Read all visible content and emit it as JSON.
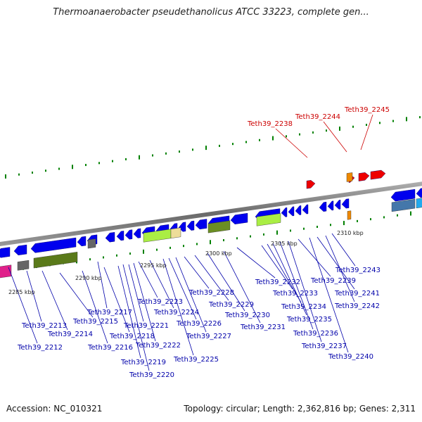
{
  "title": "Thermoanaerobacter pseudethanolicus ATCC 33223, complete gen...",
  "accession_label": "Accession: NC_010321",
  "topology_label": "Topology: circular; Length: 2,362,816 bp; Genes: 2,311",
  "colors": {
    "backbone": "#808080",
    "gene_forward": "#0000ee",
    "gene_reverse": "#ee0000",
    "label_blue": "#0000aa",
    "label_red": "#cc0000",
    "ticks": "#008000"
  },
  "kbp_ticks": [
    "2285 kbp",
    "2290 kbp",
    "2295 kbp",
    "2300 kbp",
    "2305 kbp",
    "2310 kbp"
  ],
  "gene_labels_blue": [
    "Teth39_2212",
    "Teth39_2213",
    "Teth39_2214",
    "Teth39_2215",
    "Teth39_2216",
    "Teth39_2217",
    "Teth39_2218",
    "Teth39_2219",
    "Teth39_2220",
    "Teth39_2221",
    "Teth39_2222",
    "Teth39_2223",
    "Teth39_2224",
    "Teth39_2225",
    "Teth39_2226",
    "Teth39_2227",
    "Teth39_2228",
    "Teth39_2229",
    "Teth39_2230",
    "Teth39_2231",
    "Teth39_2232",
    "Teth39_2233",
    "Teth39_2234",
    "Teth39_2235",
    "Teth39_2236",
    "Teth39_2237",
    "Teth39_2239",
    "Teth39_2240",
    "Teth39_2241",
    "Teth39_2242",
    "Teth39_2243"
  ],
  "gene_labels_red": [
    "Teth39_2238",
    "Teth39_2244",
    "Teth39_2245"
  ]
}
